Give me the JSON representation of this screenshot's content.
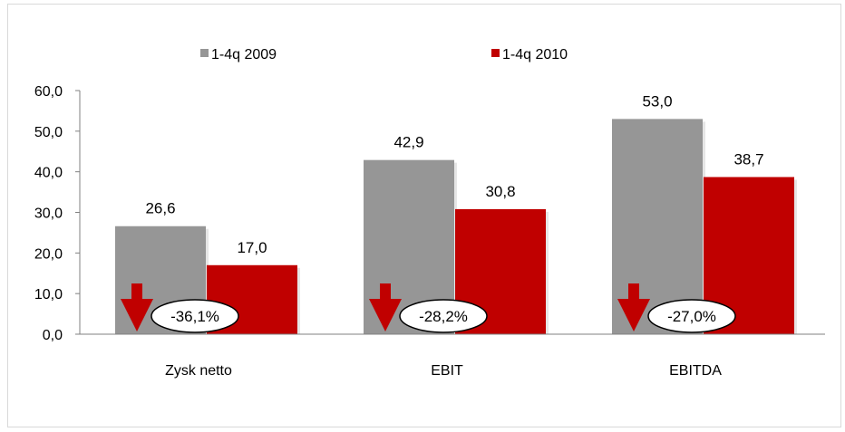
{
  "chart_data": {
    "type": "bar",
    "categories": [
      "Zysk netto",
      "EBIT",
      "EBITDA"
    ],
    "series": [
      {
        "name": "1-4q 2009",
        "values": [
          26.6,
          42.9,
          53.0
        ],
        "color": "#969696"
      },
      {
        "name": "1-4q 2010",
        "values": [
          17.0,
          30.8,
          38.7
        ],
        "color": "#c00000"
      }
    ],
    "data_labels": [
      [
        "26,6",
        "42,9",
        "53,0"
      ],
      [
        "17,0",
        "30,8",
        "38,7"
      ]
    ],
    "changes": [
      "-36,1%",
      "-28,2%",
      "-27,0%"
    ],
    "y_ticks": [
      "0,0",
      "10,0",
      "20,0",
      "30,0",
      "40,0",
      "50,0",
      "60,0"
    ],
    "ylim": [
      0,
      60
    ],
    "grid": false,
    "legend_position": "top",
    "arrow_color": "#c00000"
  }
}
